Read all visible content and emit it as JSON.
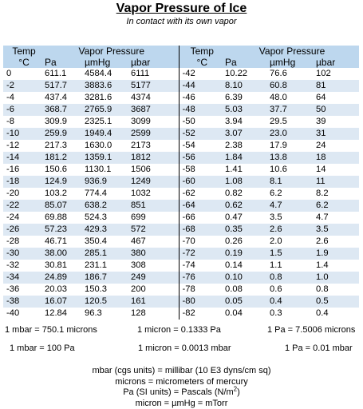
{
  "title": "Vapor Pressure of Ice",
  "subtitle": "In contact with its own vapor",
  "table": {
    "headers": {
      "temp": "Temp",
      "temp_unit": "°C",
      "group": "Vapor Pressure",
      "pa": "Pa",
      "umhg": "µmHg",
      "ubar": "µbar"
    },
    "rows": [
      [
        "0",
        "611.1",
        "4584.4",
        "6111",
        "-42",
        "10.22",
        "76.6",
        "102"
      ],
      [
        "-2",
        "517.7",
        "3883.6",
        "5177",
        "-44",
        "8.10",
        "60.8",
        "81"
      ],
      [
        "-4",
        "437.4",
        "3281.6",
        "4374",
        "-46",
        "6.39",
        "48.0",
        "64"
      ],
      [
        "-6",
        "368.7",
        "2765.9",
        "3687",
        "-48",
        "5.03",
        "37.7",
        "50"
      ],
      [
        "-8",
        "309.9",
        "2325.1",
        "3099",
        "-50",
        "3.94",
        "29.5",
        "39"
      ],
      [
        "-10",
        "259.9",
        "1949.4",
        "2599",
        "-52",
        "3.07",
        "23.0",
        "31"
      ],
      [
        "-12",
        "217.3",
        "1630.0",
        "2173",
        "-54",
        "2.38",
        "17.9",
        "24"
      ],
      [
        "-14",
        "181.2",
        "1359.1",
        "1812",
        "-56",
        "1.84",
        "13.8",
        "18"
      ],
      [
        "-16",
        "150.6",
        "1130.1",
        "1506",
        "-58",
        "1.41",
        "10.6",
        "14"
      ],
      [
        "-18",
        "124.9",
        "936.9",
        "1249",
        "-60",
        "1.08",
        "8.1",
        "11"
      ],
      [
        "-20",
        "103.2",
        "774.4",
        "1032",
        "-62",
        "0.82",
        "6.2",
        "8.2"
      ],
      [
        "-22",
        "85.07",
        "638.2",
        "851",
        "-64",
        "0.62",
        "4.7",
        "6.2"
      ],
      [
        "-24",
        "69.88",
        "524.3",
        "699",
        "-66",
        "0.47",
        "3.5",
        "4.7"
      ],
      [
        "-26",
        "57.23",
        "429.3",
        "572",
        "-68",
        "0.35",
        "2.6",
        "3.5"
      ],
      [
        "-28",
        "46.71",
        "350.4",
        "467",
        "-70",
        "0.26",
        "2.0",
        "2.6"
      ],
      [
        "-30",
        "38.00",
        "285.1",
        "380",
        "-72",
        "0.19",
        "1.5",
        "1.9"
      ],
      [
        "-32",
        "30.81",
        "231.1",
        "308",
        "-74",
        "0.14",
        "1.1",
        "1.4"
      ],
      [
        "-34",
        "24.89",
        "186.7",
        "249",
        "-76",
        "0.10",
        "0.8",
        "1.0"
      ],
      [
        "-36",
        "20.03",
        "150.3",
        "200",
        "-78",
        "0.08",
        "0.6",
        "0.8"
      ],
      [
        "-38",
        "16.07",
        "120.5",
        "161",
        "-80",
        "0.05",
        "0.4",
        "0.5"
      ],
      [
        "-40",
        "12.84",
        "96.3",
        "128",
        "-82",
        "0.04",
        "0.3",
        "0.4"
      ]
    ]
  },
  "conversions": {
    "row1": [
      "1 mbar = 750.1 microns",
      "1 micron = 0.1333 Pa",
      "1 Pa = 7.5006 microns"
    ],
    "row2": [
      "1 mbar = 100 Pa",
      "1 micron = 0.0013 mbar",
      "1 Pa = 0.01 mbar"
    ]
  },
  "definitions": {
    "line1": "mbar (cgs units) = millibar (10 E3 dyns/cm sq)",
    "line2": "microns = micrometers of mercury",
    "line3_prefix": "Pa (SI units) = Pascals (N/m",
    "line3_sup": "2",
    "line3_suffix": ")",
    "line4": "micron = µmHg = mTorr"
  }
}
